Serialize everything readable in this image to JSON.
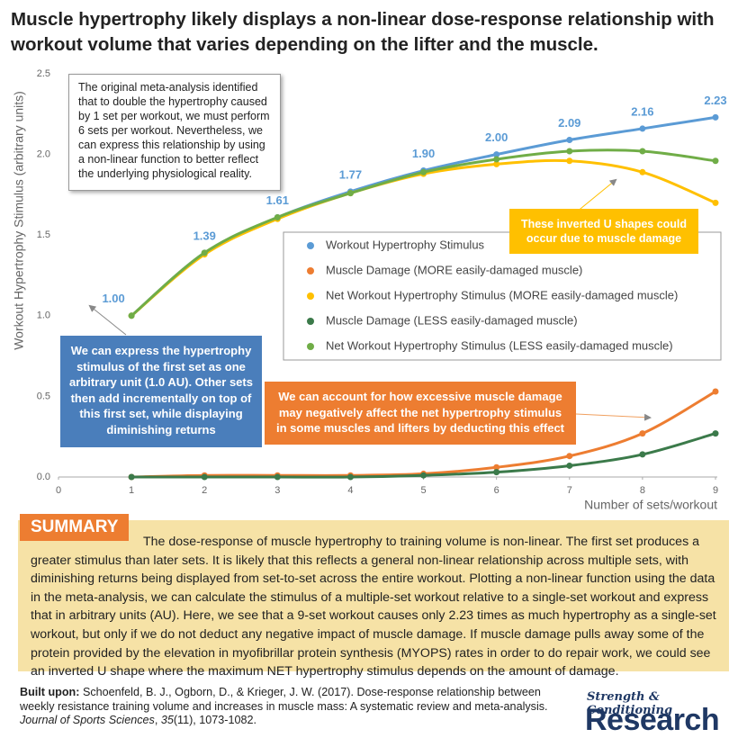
{
  "chart_data": {
    "type": "line",
    "title": "Muscle hypertrophy likely displays a non-linear dose-response relationship with workout volume that varies depending on the lifter and the muscle.",
    "x_label": "Number of sets/workout",
    "y_label": "Workout Hypertrophy Stimulus (arbitrary units)",
    "x": [
      1,
      2,
      3,
      4,
      5,
      6,
      7,
      8,
      9
    ],
    "xlim": [
      0,
      9
    ],
    "xticks": [
      0,
      1,
      2,
      3,
      4,
      5,
      6,
      7,
      8,
      9
    ],
    "ylim": [
      0,
      2.5
    ],
    "yticks": [
      {
        "value": 0,
        "label": "0.0"
      },
      0.5,
      {
        "value": 1,
        "label": "1.0"
      },
      1.5,
      {
        "value": 2,
        "label": "2.0"
      },
      2.5
    ],
    "grid": false,
    "series": [
      {
        "name": "Workout Hypertrophy Stimulus",
        "color": "#5b9bd5",
        "values": [
          1.0,
          1.39,
          1.61,
          1.77,
          1.9,
          2.0,
          2.09,
          2.16,
          2.23
        ],
        "value_labels": [
          "1.00",
          "1.39",
          "1.61",
          "1.77",
          "1.90",
          "2.00",
          "2.09",
          "2.16",
          "2.23"
        ]
      },
      {
        "name": "Muscle Damage (MORE easily-damaged muscle)",
        "color": "#ed7d31",
        "values": [
          0.0,
          0.01,
          0.01,
          0.01,
          0.02,
          0.06,
          0.13,
          0.27,
          0.53
        ]
      },
      {
        "name": "Net Workout Hypertrophy Stimulus (MORE easily-damaged muscle)",
        "color": "#ffc000",
        "values": [
          1.0,
          1.38,
          1.6,
          1.76,
          1.88,
          1.94,
          1.96,
          1.89,
          1.7
        ]
      },
      {
        "name": "Muscle Damage (LESS easily-damaged muscle)",
        "color": "#3b7a4a",
        "values": [
          0.0,
          0.0,
          0.0,
          0.0,
          0.01,
          0.03,
          0.07,
          0.14,
          0.27
        ]
      },
      {
        "name": "Net Workout Hypertrophy Stimulus (LESS easily-damaged muscle)",
        "color": "#70ad47",
        "values": [
          1.0,
          1.39,
          1.61,
          1.76,
          1.89,
          1.97,
          2.02,
          2.02,
          1.96
        ]
      }
    ],
    "annotations": [
      "The original meta-analysis identified that to double the hypertrophy caused by 1 set per workout, we must perform 6 sets per workout. Nevertheless, we can express this relationship by using a non-linear function to better reflect the underlying physiological reality.",
      "These inverted U shapes could occur due to muscle damage",
      "We can express the hypertrophy stimulus of the first set as one arbitrary unit (1.0 AU). Other sets then add incrementally on top of this first set, while displaying diminishing returns",
      "We can account for how excessive muscle damage may negatively affect the net hypertrophy stimulus in some muscles and lifters by deducting this effect"
    ]
  },
  "summary": {
    "heading": "SUMMARY",
    "text": "The dose-response of muscle hypertrophy to training volume is non-linear. The first set produces a greater stimulus than later sets. It is likely that this reflects a general non-linear relationship across multiple sets, with diminishing returns being displayed from set-to-set across the entire workout. Plotting a non-linear function using the data in the meta-analysis, we can calculate the stimulus of a multiple-set workout relative to a single-set workout and express that in arbitrary units (AU). Here, we see that a 9-set workout causes only 2.23 times as much hypertrophy as a single-set workout, but only if we do not deduct any negative impact of muscle damage. If muscle damage pulls away some of the protein provided by the elevation in myofibrillar protein synthesis (MYOPS) rates in order to do repair work, we could see an inverted U shape where the maximum NET hypertrophy stimulus depends on the amount of damage."
  },
  "citation": {
    "label": "Built upon:",
    "authors": "Schoenfeld, B. J., Ogborn, D., & Krieger, J. W. (2017). Dose-response relationship between weekly resistance training volume and increases in muscle mass: A systematic review and meta-analysis.",
    "journal": "Journal of Sports Sciences",
    "sep": ",",
    "volume": "35",
    "pages": "(11), 1073-1082."
  },
  "logo": {
    "tagline": "Strength & Conditioning",
    "name": "Research"
  }
}
